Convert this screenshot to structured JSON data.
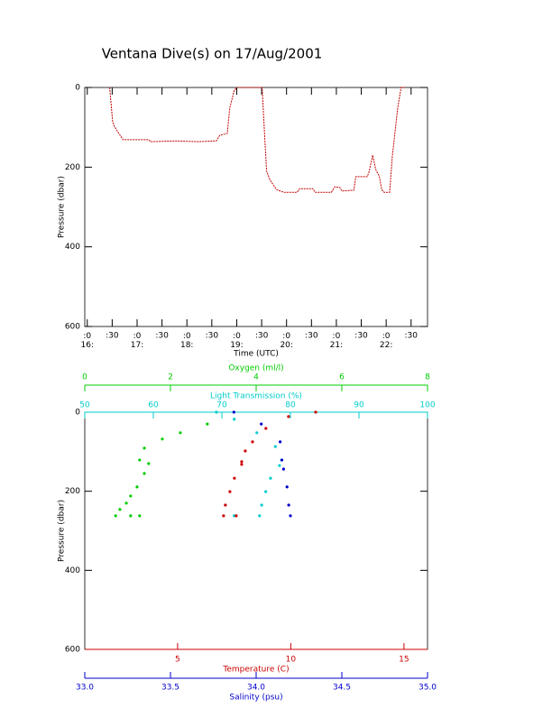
{
  "title": "Ventana Dive(s) on 17/Aug/2001",
  "chart_data": [
    {
      "type": "line",
      "xlabel": "Time (UTC)",
      "ylabel": "Pressure (dbar)",
      "ylim": [
        0,
        600
      ],
      "yticks": [
        0,
        200,
        400,
        600
      ],
      "yreverse": true,
      "xlim": [
        15.95,
        22.83
      ],
      "xticks": [
        {
          "value": 16,
          "label": ":0\n16:"
        },
        {
          "value": 16.5,
          "label": ":30"
        },
        {
          "value": 17,
          "label": ":0\n17:"
        },
        {
          "value": 17.5,
          "label": ":30"
        },
        {
          "value": 18,
          "label": ":0\n18:"
        },
        {
          "value": 18.5,
          "label": ":30"
        },
        {
          "value": 19,
          "label": ":0\n19:"
        },
        {
          "value": 19.5,
          "label": ":30"
        },
        {
          "value": 20,
          "label": ":0\n20:"
        },
        {
          "value": 20.5,
          "label": ":30"
        },
        {
          "value": 21,
          "label": ":0\n21:"
        },
        {
          "value": 21.5,
          "label": ":30"
        },
        {
          "value": 22,
          "label": ":0\n22:"
        },
        {
          "value": 22.5,
          "label": ":30"
        }
      ],
      "series": [
        {
          "color": "#c00000",
          "x": [
            16.45,
            16.51,
            16.54,
            16.6,
            16.72,
            16.96,
            17.23,
            17.27,
            17.78,
            18.23,
            18.59,
            18.66,
            18.81,
            18.86,
            18.95,
            19.01,
            19.51,
            19.56,
            19.6,
            19.67,
            19.8,
            19.94,
            20.21,
            20.26,
            20.53,
            20.57,
            20.9,
            20.97,
            21.07,
            21.11,
            21.35,
            21.39,
            21.62,
            21.66,
            21.73,
            21.79,
            21.86,
            21.91,
            21.96,
            22.07,
            22.12,
            22.23,
            22.3,
            22.37
          ],
          "values": [
            0,
            86,
            97,
            109,
            131,
            131,
            131,
            136,
            134,
            136,
            134,
            120,
            115,
            52,
            7,
            0,
            0,
            120,
            210,
            233,
            256,
            263,
            263,
            254,
            254,
            263,
            263,
            249,
            251,
            260,
            258,
            224,
            224,
            210,
            170,
            206,
            222,
            256,
            263,
            263,
            177,
            52,
            0,
            0
          ]
        }
      ]
    },
    {
      "type": "scatter",
      "ylabel": "Pressure (dbar)",
      "ylim": [
        0,
        600
      ],
      "yticks": [
        0,
        200,
        400,
        600
      ],
      "yreverse": true,
      "x_axes": [
        {
          "label": "Oxygen (ml/l)",
          "color": "#00cc00",
          "xlim": [
            0,
            8
          ],
          "xticks": [
            0,
            2,
            4,
            6,
            8
          ]
        },
        {
          "label": "Light Transmission (%)",
          "color": "#00cccc",
          "xlim": [
            50,
            100
          ],
          "xticks": [
            50,
            60,
            70,
            80,
            90,
            100
          ]
        },
        {
          "label": "Temperature (C)",
          "color": "#cc0000",
          "xlim": [
            0.9,
            16.04
          ],
          "xticks": [
            5,
            10,
            15
          ]
        },
        {
          "label": "Salinity (psu)",
          "color": "#0000cc",
          "xlim": [
            33,
            35
          ],
          "xticks": [
            {
              "value": 33,
              "label": "33.0"
            },
            33.5,
            {
              "value": 34,
              "label": "34.0"
            },
            34.5,
            {
              "value": 35,
              "label": "35.0"
            }
          ]
        }
      ],
      "series": [
        {
          "x_axis": 0,
          "color": "#00cc00",
          "x": [
            2.86,
            2.23,
            1.81,
            1.39,
            1.28,
            1.49,
            1.39,
            1.22,
            1.07,
            0.97,
            0.82,
            0.72,
            1.07,
            1.28
          ],
          "values": [
            30,
            52,
            68,
            91,
            121,
            130,
            155,
            189,
            212,
            230,
            246,
            262,
            262,
            262
          ]
        },
        {
          "x_axis": 1,
          "color": "#00cccc",
          "x": [
            69.2,
            71.8,
            75.1,
            77.8,
            78.7,
            78.4,
            77.1,
            76.4,
            75.8,
            75.5,
            71.8
          ],
          "values": [
            0,
            18,
            52,
            87,
            121,
            135,
            167,
            201,
            235,
            262,
            262
          ]
        },
        {
          "x_axis": 2,
          "color": "#cc0000",
          "x": [
            11.1,
            9.9,
            8.9,
            8.31,
            7.99,
            7.83,
            7.83,
            7.51,
            7.31,
            7.11,
            7.03,
            7.59
          ],
          "values": [
            0,
            11,
            41,
            75,
            98,
            125,
            132,
            167,
            201,
            235,
            262,
            262
          ]
        },
        {
          "x_axis": 3,
          "color": "#0000cc",
          "x": [
            33.87,
            34.03,
            34.14,
            34.15,
            34.16,
            34.18,
            34.19,
            34.2
          ],
          "values": [
            0,
            30,
            75,
            121,
            144,
            189,
            235,
            262
          ]
        }
      ]
    }
  ]
}
